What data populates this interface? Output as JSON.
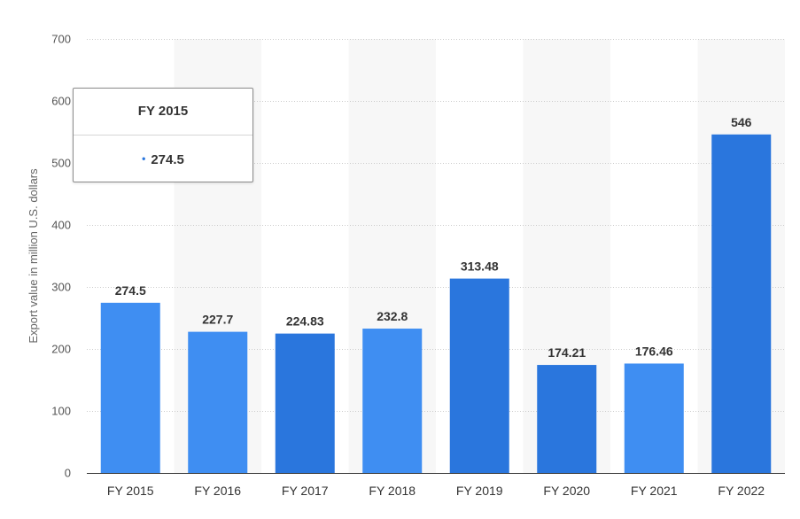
{
  "chart_data": {
    "type": "bar",
    "categories": [
      "FY 2015",
      "FY 2016",
      "FY 2017",
      "FY 2018",
      "FY 2019",
      "FY 2020",
      "FY 2021",
      "FY 2022"
    ],
    "values": [
      274.5,
      227.7,
      224.83,
      232.8,
      313.48,
      174.21,
      176.46,
      546
    ],
    "value_labels": [
      "274.5",
      "227.7",
      "224.83",
      "232.8",
      "313.48",
      "174.21",
      "176.46",
      "546"
    ],
    "ylabel": "Export value in million U.S. dollars",
    "xlabel": "",
    "ylim": [
      0,
      700
    ],
    "yticks": [
      0,
      100,
      200,
      300,
      400,
      500,
      600,
      700
    ],
    "grid": true,
    "colors": {
      "bar_light": "#3f8ef2",
      "bar_dark": "#2a76dd",
      "band": "#f7f7f7",
      "grid": "#cccccc"
    }
  },
  "tooltip": {
    "title": "FY 2015",
    "value": "274.5",
    "bullet": "•"
  }
}
